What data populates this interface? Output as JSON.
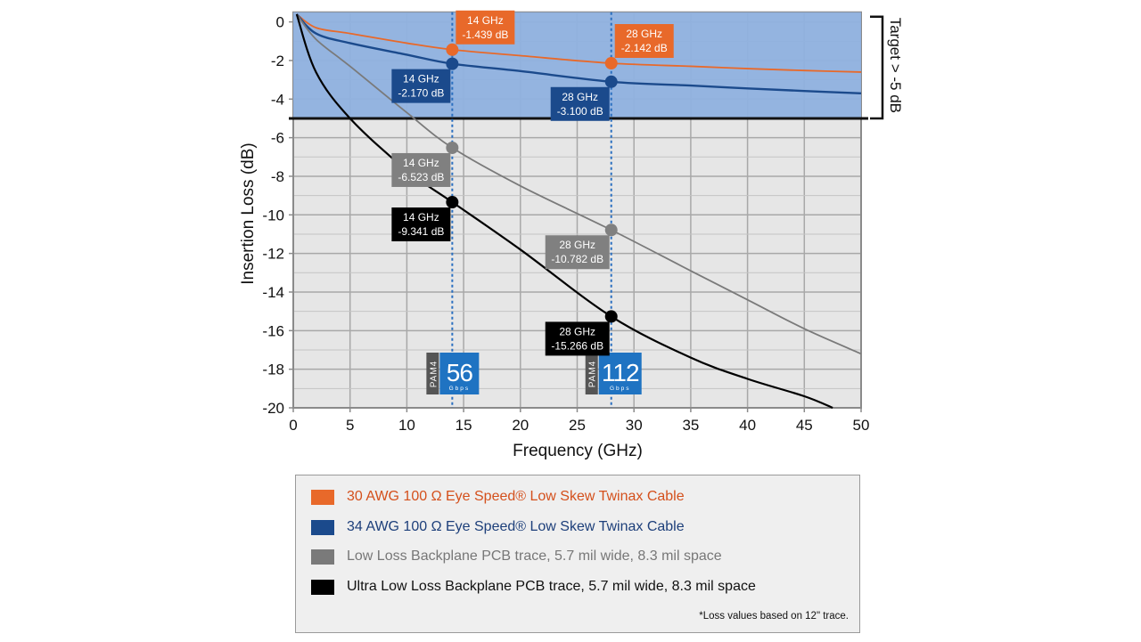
{
  "chart_data": {
    "type": "line",
    "title": "",
    "xlabel": "Frequency (GHz)",
    "ylabel": "Insertion Loss (dB)",
    "xlim": [
      0,
      50
    ],
    "ylim": [
      -20,
      0.5
    ],
    "xticks": [
      "0",
      "5",
      "10",
      "15",
      "20",
      "25",
      "30",
      "35",
      "40",
      "45",
      "50"
    ],
    "yticks": [
      "0",
      "-2",
      "-4",
      "-6",
      "-8",
      "-10",
      "-12",
      "-14",
      "-16",
      "-18",
      "-20"
    ],
    "grid": true,
    "x": [
      0,
      2,
      5,
      10,
      14,
      20,
      28,
      35,
      40,
      45,
      50
    ],
    "series": [
      {
        "name": "30 AWG 100 Ω Eye Speed® Low Skew Twinax Cable",
        "color": "#e8692a",
        "values": [
          0.4,
          -0.3,
          -0.6,
          -1.1,
          -1.439,
          -1.75,
          -2.142,
          -2.3,
          -2.42,
          -2.52,
          -2.6
        ]
      },
      {
        "name": "34 AWG 100 Ω Eye Speed® Low Skew Twinax Cable",
        "color": "#1b4a8c",
        "values": [
          0.4,
          -0.6,
          -1.1,
          -1.7,
          -2.17,
          -2.55,
          -3.1,
          -3.3,
          -3.45,
          -3.58,
          -3.7
        ]
      },
      {
        "name": "Low Loss Backplane PCB trace, 5.7 mil wide, 8.3 mil space",
        "color": "#7a7a7a",
        "values": [
          0.4,
          -0.9,
          -2.3,
          -4.7,
          -6.523,
          -8.5,
          -10.782,
          -12.9,
          -14.4,
          -15.9,
          -17.2
        ]
      },
      {
        "name": "Ultra Low Loss Backplane PCB trace, 5.7 mil wide, 8.3 mil space",
        "color": "#000000",
        "values": [
          0.4,
          -2.6,
          -5.0,
          -7.7,
          -9.341,
          -11.8,
          -15.266,
          -17.4,
          -18.5,
          -19.4,
          null
        ],
        "end_point": [
          47.5,
          -20
        ]
      }
    ],
    "target_region": {
      "from": 0.5,
      "to": -5,
      "label": "Target  > -5 dB",
      "color": "#8fb1df"
    },
    "markers": [
      {
        "series": 0,
        "x": 14,
        "y": -1.439,
        "label_line1": "14 GHz",
        "label_line2": "-1.439 dB",
        "side": "right-up"
      },
      {
        "series": 0,
        "x": 28,
        "y": -2.142,
        "label_line1": "28 GHz",
        "label_line2": "-2.142 dB",
        "side": "right-up"
      },
      {
        "series": 1,
        "x": 14,
        "y": -2.17,
        "label_line1": "14 GHz",
        "label_line2": "-2.170 dB",
        "side": "left-down"
      },
      {
        "series": 1,
        "x": 28,
        "y": -3.1,
        "label_line1": "28 GHz",
        "label_line2": "-3.100 dB",
        "side": "left-down"
      },
      {
        "series": 2,
        "x": 14,
        "y": -6.523,
        "label_line1": "14 GHz",
        "label_line2": "-6.523 dB",
        "side": "left-down"
      },
      {
        "series": 2,
        "x": 28,
        "y": -10.782,
        "label_line1": "28 GHz",
        "label_line2": "-10.782 dB",
        "side": "left-down"
      },
      {
        "series": 3,
        "x": 14,
        "y": -9.341,
        "label_line1": "14 GHz",
        "label_line2": "-9.341 dB",
        "side": "left-down"
      },
      {
        "series": 3,
        "x": 28,
        "y": -15.266,
        "label_line1": "28 GHz",
        "label_line2": "-15.266 dB",
        "side": "left-down"
      }
    ],
    "vlines": [
      14,
      28
    ],
    "badges": [
      {
        "x": 14,
        "mod": "PAM4",
        "rate": "56",
        "unit": "Gbps"
      },
      {
        "x": 28,
        "mod": "PAM4",
        "rate": "112",
        "unit": "Gbps"
      }
    ],
    "legend_position": "bottom"
  },
  "legend": {
    "items": [
      {
        "label": "30 AWG 100 Ω Eye Speed® Low Skew Twinax Cable",
        "color": "#e8692a",
        "text_color": "#d4501c"
      },
      {
        "label": "34 AWG 100 Ω Eye Speed® Low Skew Twinax Cable",
        "color": "#1b4a8c",
        "text_color": "#1d3f7a"
      },
      {
        "label": "Low Loss Backplane PCB trace, 5.7 mil wide, 8.3 mil space",
        "color": "#7a7a7a",
        "text_color": "#777777"
      },
      {
        "label": "Ultra Low Loss Backplane PCB trace, 5.7 mil wide, 8.3 mil space",
        "color": "#000000",
        "text_color": "#111111"
      }
    ],
    "note": "*Loss values based on 12\" trace."
  }
}
